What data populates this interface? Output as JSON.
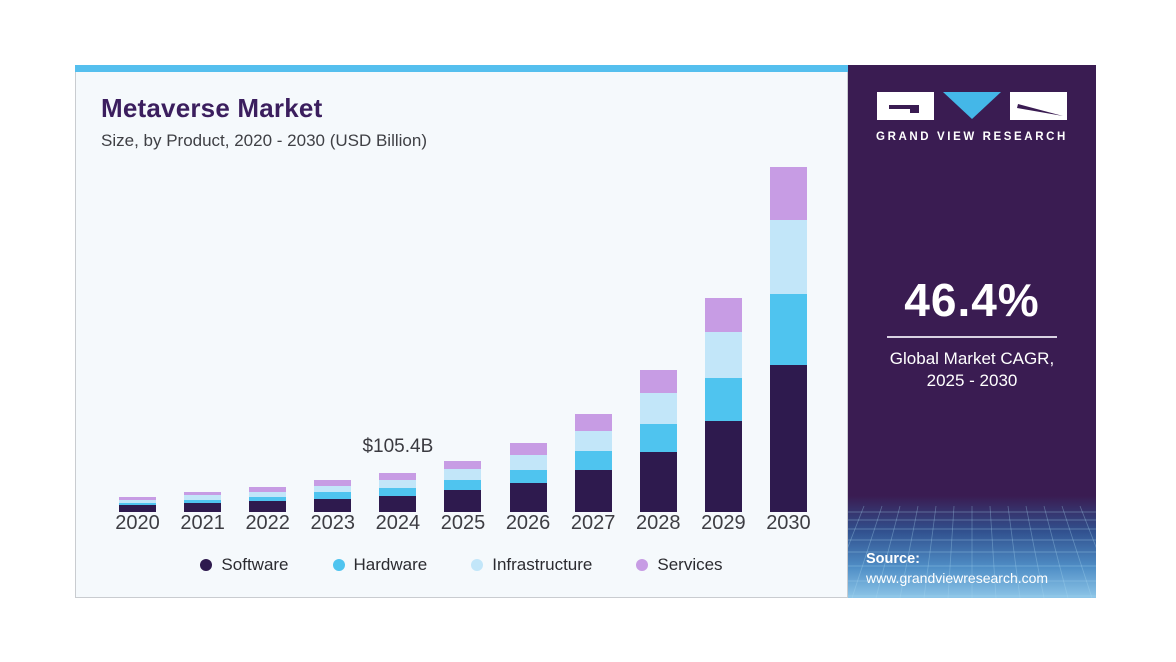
{
  "chart": {
    "title": "Metaverse Market",
    "subtitle": "Size, by Product, 2020 - 2030 (USD Billion)"
  },
  "chart_data": {
    "type": "bar",
    "stacked": true,
    "title": "Metaverse Market",
    "subtitle": "Size, by Product, 2020 - 2030 (USD Billion)",
    "unit": "USD Billion",
    "categories": [
      "2020",
      "2021",
      "2022",
      "2023",
      "2024",
      "2025",
      "2026",
      "2027",
      "2028",
      "2029",
      "2030"
    ],
    "series": [
      {
        "name": "Software",
        "color": "#2e1a4e",
        "values": [
          18,
          24,
          29,
          35,
          43.4,
          59,
          80,
          114,
          163,
          248,
          398
        ]
      },
      {
        "name": "Hardware",
        "color": "#4fc4ef",
        "values": [
          7,
          10,
          12,
          19,
          21.5,
          28,
          35,
          52,
          77,
          115,
          194
        ]
      },
      {
        "name": "Infrastructure",
        "color": "#c2e6f9",
        "values": [
          8,
          11,
          14,
          17,
          22,
          30,
          40,
          55,
          82,
          125,
          199.6
        ]
      },
      {
        "name": "Services",
        "color": "#c79ce4",
        "values": [
          7,
          10,
          12,
          15,
          18.5,
          22,
          33,
          44,
          63,
          92,
          145
        ]
      }
    ],
    "totals": [
      40,
      55,
      67,
      86,
      105.4,
      139,
      188,
      265,
      385,
      580,
      936.6
    ],
    "annotation": {
      "category": "2024",
      "text": "$105.4B"
    },
    "xlabel": "",
    "ylabel": "",
    "ylim": [
      0,
      960
    ],
    "grid": false,
    "legend_position": "bottom"
  },
  "sidebar": {
    "brand_name": "GRAND VIEW RESEARCH",
    "cagr_value": "46.4%",
    "cagr_label_line1": "Global Market CAGR,",
    "cagr_label_line2": "2025 - 2030",
    "source_label": "Source:",
    "source_url": "www.grandviewresearch.com"
  },
  "colors": {
    "accent_strip": "#55bfee",
    "sidebar_bg": "#3a1c52",
    "title_purple": "#3b1e5e",
    "logo_triangle": "#44b7e8"
  }
}
